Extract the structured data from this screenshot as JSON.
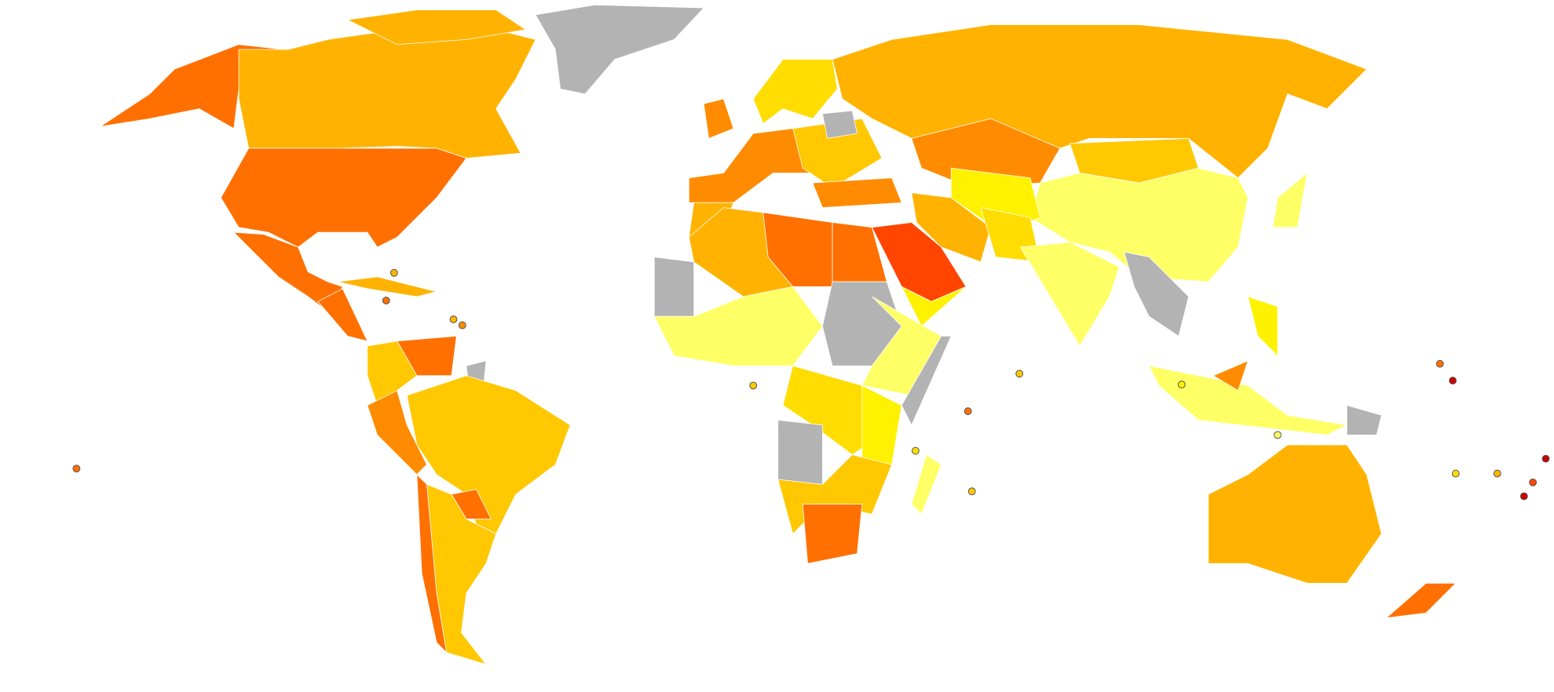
{
  "map": {
    "background": "#ffffff",
    "border": "#ffffff",
    "palette": [
      "#ffff66",
      "#fff200",
      "#ffdd00",
      "#ffc800",
      "#ffb300",
      "#ff8c00",
      "#ff7000",
      "#ff4500",
      "#cc0000",
      "#b3b3b3"
    ]
  }
}
